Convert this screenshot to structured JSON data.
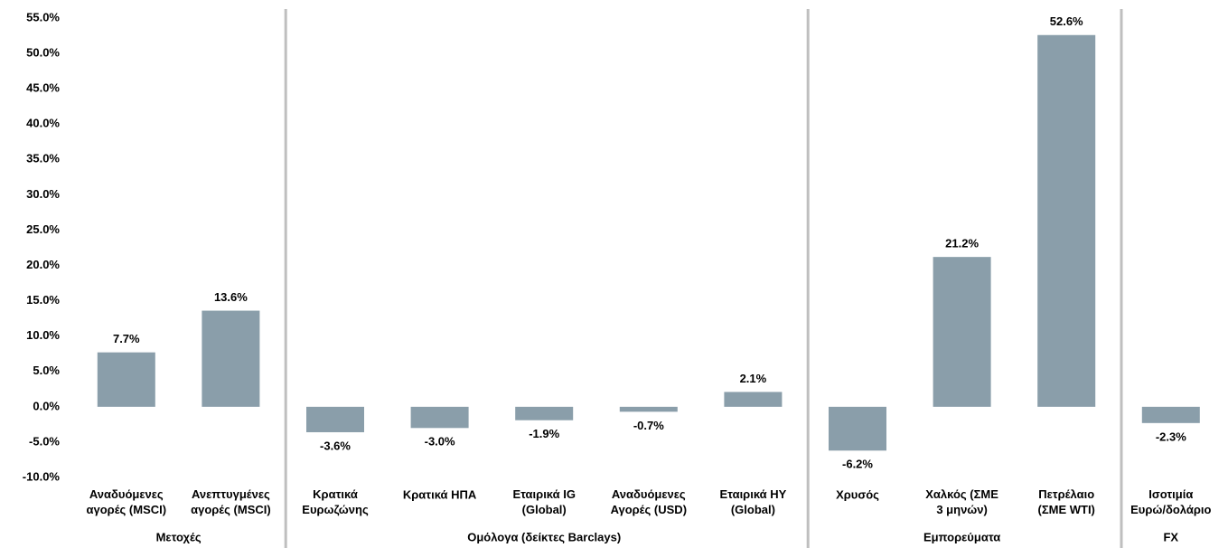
{
  "chart_data": {
    "type": "bar",
    "categories": [
      "Αναδυόμενες\nαγορές (MSCI)",
      "Ανεπτυγμένες\nαγορές (MSCI)",
      "Κρατικά\nΕυρωζώνης",
      "Κρατικά ΗΠΑ",
      "Εταιρικά IG\n(Global)",
      "Αναδυόμενες\nΑγορές (USD)",
      "Εταιρικά HY\n(Global)",
      "Χρυσός",
      "Χαλκός (ΣΜΕ\n3 μηνών)",
      "Πετρέλαιο\n(ΣΜΕ WTI)",
      "Ισοτιμία\nΕυρώ/δολάριο"
    ],
    "values": [
      7.7,
      13.6,
      -3.6,
      -3.0,
      -1.9,
      -0.7,
      2.1,
      -6.2,
      21.2,
      52.6,
      -2.3
    ],
    "value_labels": [
      "7.7%",
      "13.6%",
      "-3.6%",
      "-3.0%",
      "-1.9%",
      "-0.7%",
      "2.1%",
      "-6.2%",
      "21.2%",
      "52.6%",
      "-2.3%"
    ],
    "groups": [
      {
        "name": "Μετοχές",
        "count": 2
      },
      {
        "name": "Ομόλογα (δείκτες Barclays)",
        "count": 5
      },
      {
        "name": "Εμπορεύματα",
        "count": 3
      },
      {
        "name": "FX",
        "count": 1
      }
    ],
    "color": "#8a9eaa",
    "ylim": [
      -10,
      55
    ],
    "yticks": [
      {
        "value": -10,
        "label": "-10.0%"
      },
      {
        "value": -5,
        "label": "-5.0%"
      },
      {
        "value": 0,
        "label": "0.0%"
      },
      {
        "value": 5,
        "label": "5.0%"
      },
      {
        "value": 10,
        "label": "10.0%"
      },
      {
        "value": 15,
        "label": "15.0%"
      },
      {
        "value": 20,
        "label": "20.0%"
      },
      {
        "value": 25,
        "label": "25.0%"
      },
      {
        "value": 30,
        "label": "30.0%"
      },
      {
        "value": 35,
        "label": "35.0%"
      },
      {
        "value": 40,
        "label": "40.0%"
      },
      {
        "value": 45,
        "label": "45.0%"
      },
      {
        "value": 50,
        "label": "50.0%"
      },
      {
        "value": 55,
        "label": "55.0%"
      }
    ],
    "grid": false
  }
}
